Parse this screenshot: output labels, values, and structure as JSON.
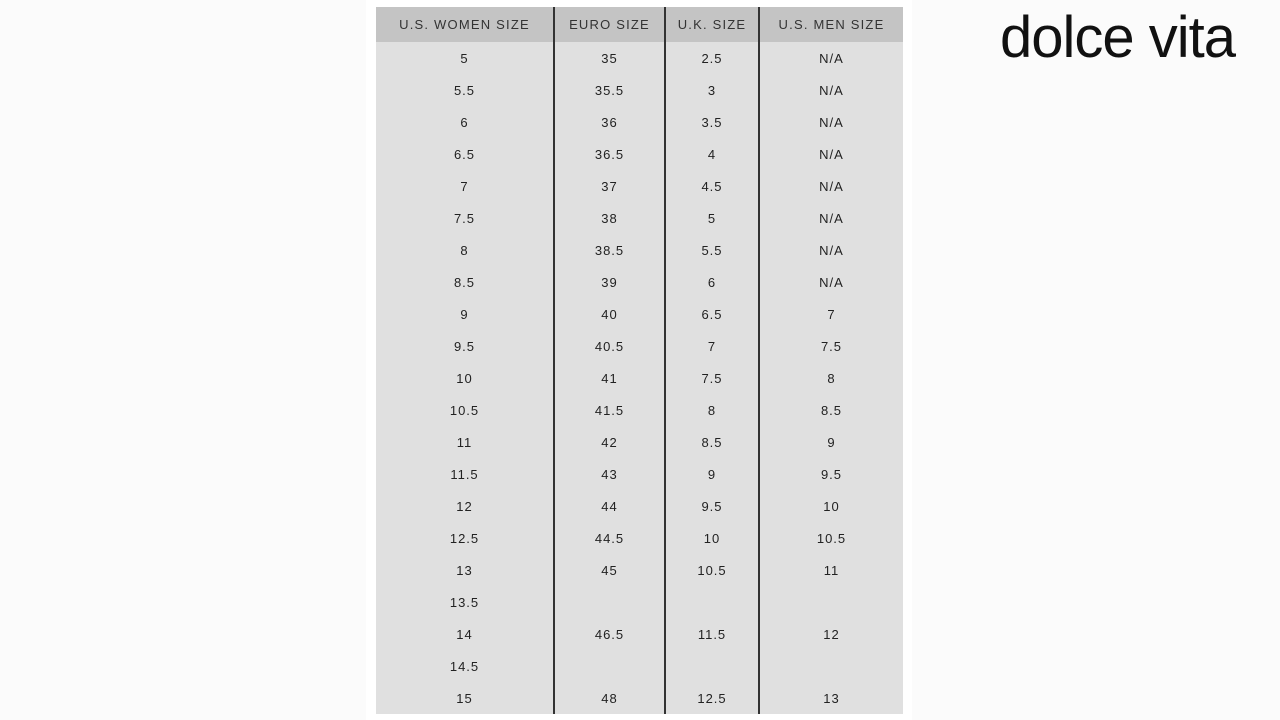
{
  "brand": "dolce vita",
  "table": {
    "headers": [
      "U.S. WOMEN SIZE",
      "EURO SIZE",
      "U.K. SIZE",
      "U.S. MEN SIZE"
    ],
    "rows": [
      [
        "5",
        "35",
        "2.5",
        "N/A"
      ],
      [
        "5.5",
        "35.5",
        "3",
        "N/A"
      ],
      [
        "6",
        "36",
        "3.5",
        "N/A"
      ],
      [
        "6.5",
        "36.5",
        "4",
        "N/A"
      ],
      [
        "7",
        "37",
        "4.5",
        "N/A"
      ],
      [
        "7.5",
        "38",
        "5",
        "N/A"
      ],
      [
        "8",
        "38.5",
        "5.5",
        "N/A"
      ],
      [
        "8.5",
        "39",
        "6",
        "N/A"
      ],
      [
        "9",
        "40",
        "6.5",
        "7"
      ],
      [
        "9.5",
        "40.5",
        "7",
        "7.5"
      ],
      [
        "10",
        "41",
        "7.5",
        "8"
      ],
      [
        "10.5",
        "41.5",
        "8",
        "8.5"
      ],
      [
        "11",
        "42",
        "8.5",
        "9"
      ],
      [
        "11.5",
        "43",
        "9",
        "9.5"
      ],
      [
        "12",
        "44",
        "9.5",
        "10"
      ],
      [
        "12.5",
        "44.5",
        "10",
        "10.5"
      ],
      [
        "13",
        "45",
        "10.5",
        "11"
      ],
      [
        "13.5",
        "",
        "",
        ""
      ],
      [
        "14",
        "46.5",
        "11.5",
        "12"
      ],
      [
        "14.5",
        "",
        "",
        ""
      ],
      [
        "15",
        "48",
        "12.5",
        "13"
      ]
    ]
  }
}
